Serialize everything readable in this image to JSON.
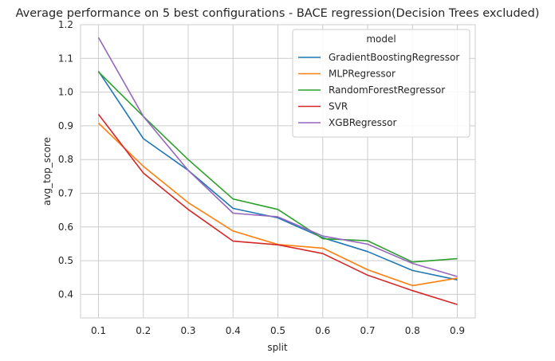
{
  "chart_data": {
    "type": "line",
    "title": "Average performance on 5 best configurations - BACE regression(Decision Trees excluded)",
    "xlabel": "split",
    "ylabel": "avg_top_score",
    "x": [
      0.1,
      0.2,
      0.3,
      0.4,
      0.5,
      0.6,
      0.7,
      0.8,
      0.9
    ],
    "x_ticks": [
      "0.1",
      "0.2",
      "0.3",
      "0.4",
      "0.5",
      "0.6",
      "0.7",
      "0.8",
      "0.9"
    ],
    "y_ticks": [
      "0.4",
      "0.5",
      "0.6",
      "0.7",
      "0.8",
      "0.9",
      "1.0",
      "1.1",
      "1.2"
    ],
    "xlim": [
      0.06,
      0.94
    ],
    "ylim": [
      0.33,
      1.2
    ],
    "grid": true,
    "legend_title": "model",
    "legend_position": "top-right",
    "series": [
      {
        "name": "GradientBoostingRegressor",
        "color": "#1f77b4",
        "values": [
          1.062,
          0.862,
          0.768,
          0.655,
          0.627,
          0.568,
          0.527,
          0.471,
          0.443
        ]
      },
      {
        "name": "MLPRegressor",
        "color": "#ff7f0e",
        "values": [
          0.908,
          0.78,
          0.672,
          0.588,
          0.548,
          0.537,
          0.473,
          0.426,
          0.448
        ]
      },
      {
        "name": "RandomForestRegressor",
        "color": "#2ca02c",
        "values": [
          1.06,
          0.928,
          0.8,
          0.683,
          0.652,
          0.565,
          0.559,
          0.496,
          0.506
        ]
      },
      {
        "name": "SVR",
        "color": "#d62728",
        "values": [
          0.934,
          0.76,
          0.652,
          0.558,
          0.547,
          0.521,
          0.457,
          0.411,
          0.37
        ]
      },
      {
        "name": "XGBRegressor",
        "color": "#9467bd",
        "values": [
          1.162,
          0.928,
          0.768,
          0.641,
          0.63,
          0.573,
          0.549,
          0.492,
          0.453
        ]
      }
    ]
  }
}
